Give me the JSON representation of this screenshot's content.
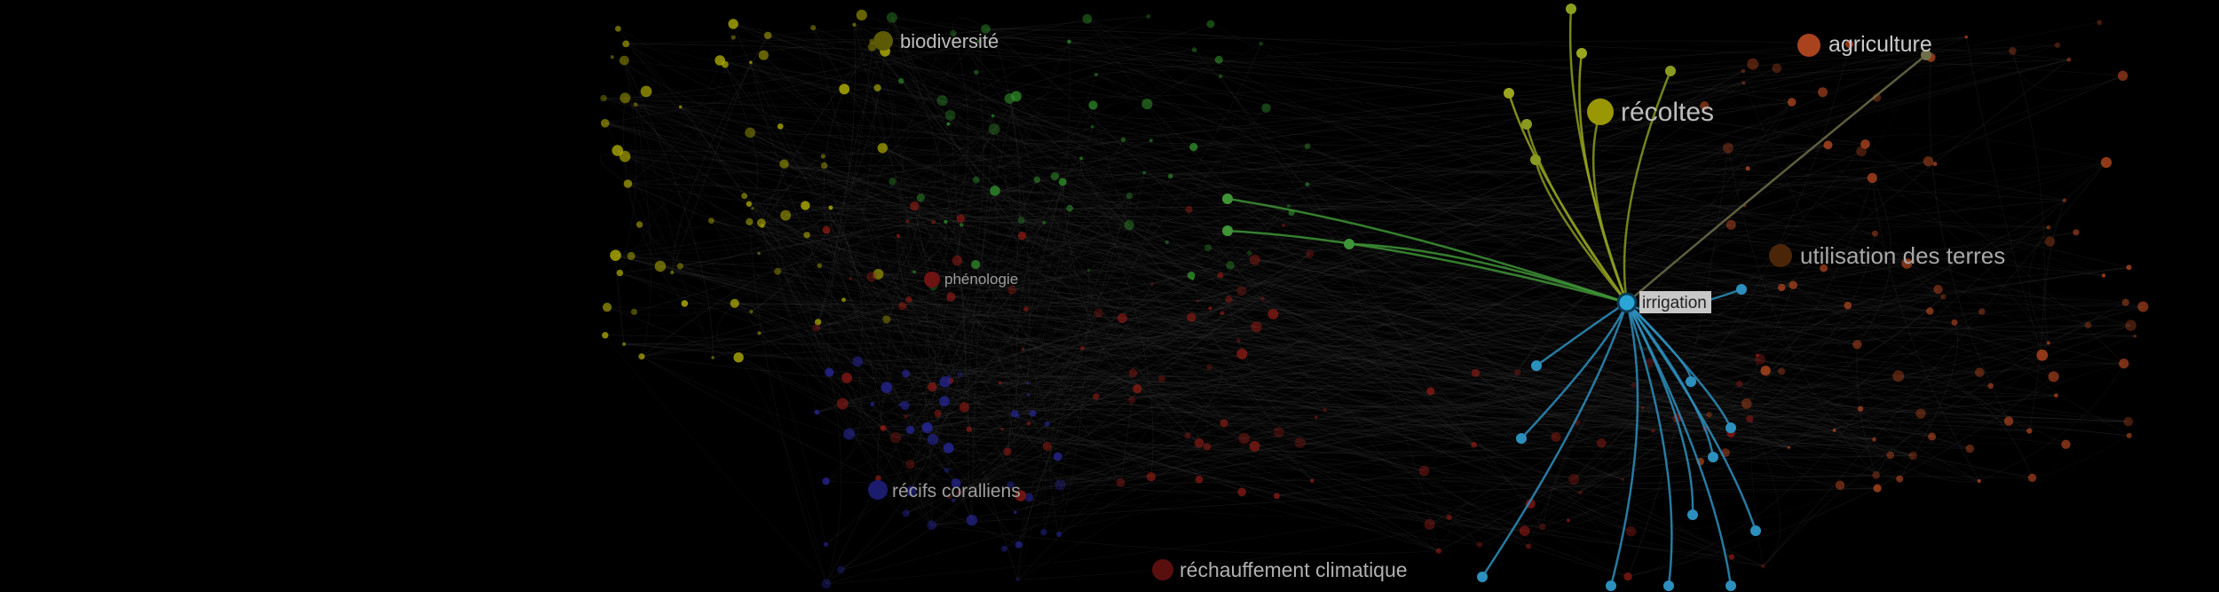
{
  "colors": {
    "background": "#000000",
    "edge_faint": "#3a3a3a",
    "yellow_cluster": "#b8b400",
    "green_cluster": "#2f8f2a",
    "red_cluster": "#8a1a14",
    "blue_cluster": "#252596",
    "orange_cluster": "#b4471f",
    "cyan_cluster": "#2d8fbd",
    "selected_highlight": "#2aa6d6"
  },
  "graph": {
    "selected_node": "irrigation",
    "labels": {
      "biodiversite": "biodiversité",
      "agriculture": "agriculture",
      "recoltes": "récoltes",
      "utilisation_des_terres": "utilisation des terres",
      "phenologie": "phénologie",
      "irrigation": "irrigation",
      "recifs_coralliens": "récifs coralliens",
      "rechauffement_climatique": "réchauffement climatique"
    }
  }
}
